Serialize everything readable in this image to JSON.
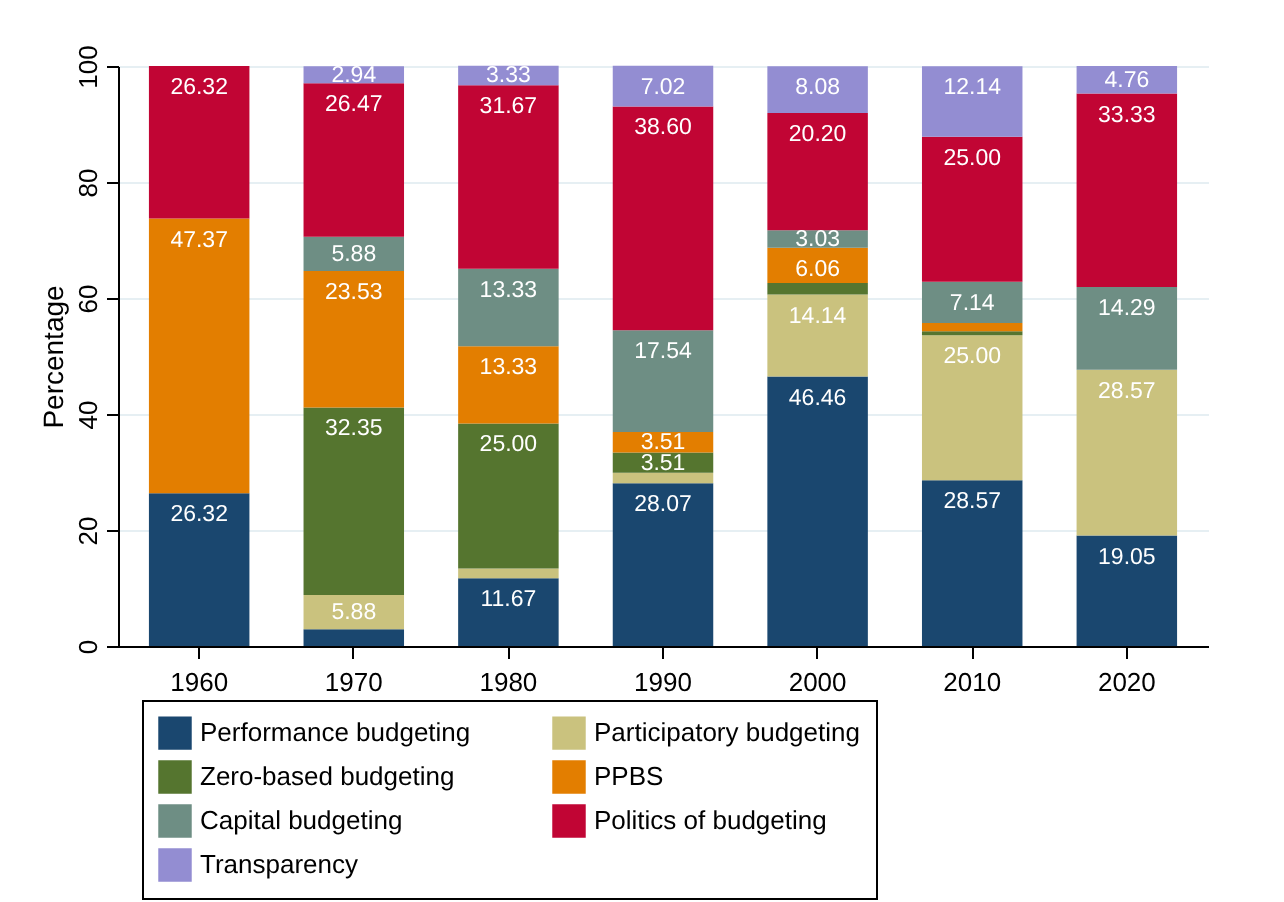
{
  "chart_data": {
    "type": "bar",
    "stacked": true,
    "ylabel": "Percentage",
    "categories": [
      "1960",
      "1970",
      "1980",
      "1990",
      "2000",
      "2010",
      "2020"
    ],
    "ylim": [
      0,
      100
    ],
    "yticks": [
      0,
      20,
      40,
      60,
      80,
      100
    ],
    "grid": "y",
    "legend": "bottom",
    "series": [
      {
        "name": "Performance budgeting",
        "color": "#1a476f",
        "values": [
          26.32,
          2.9,
          11.67,
          28.07,
          46.46,
          28.57,
          19.05
        ],
        "value_labels": [
          "26.32",
          null,
          "11.67",
          "28.07",
          "46.46",
          "28.57",
          "19.05"
        ]
      },
      {
        "name": "Participatory budgeting",
        "color": "#cac27e",
        "values": [
          0,
          5.88,
          1.7,
          1.8,
          14.14,
          25.0,
          28.57
        ],
        "value_labels": [
          null,
          "5.88",
          null,
          null,
          "14.14",
          "25.00",
          "28.57"
        ]
      },
      {
        "name": "Zero-based budgeting",
        "color": "#55752f",
        "values": [
          0,
          32.35,
          25.0,
          3.51,
          2.0,
          0.7,
          0
        ],
        "value_labels": [
          null,
          "32.35",
          "25.00",
          "3.51",
          null,
          null,
          null
        ]
      },
      {
        "name": "PPBS",
        "color": "#e37e00",
        "values": [
          47.37,
          23.53,
          13.33,
          3.51,
          6.06,
          1.4,
          0
        ],
        "value_labels": [
          "47.37",
          "23.53",
          "13.33",
          "3.51",
          "6.06",
          null,
          null
        ]
      },
      {
        "name": "Capital budgeting",
        "color": "#6e8e84",
        "values": [
          0,
          5.88,
          13.33,
          17.54,
          3.03,
          7.14,
          14.29
        ],
        "value_labels": [
          null,
          "5.88",
          "13.33",
          "17.54",
          "3.03",
          "7.14",
          "14.29"
        ]
      },
      {
        "name": "Politics of budgeting",
        "color": "#c10534",
        "values": [
          26.32,
          26.47,
          31.67,
          38.6,
          20.2,
          25.0,
          33.33
        ],
        "value_labels": [
          "26.32",
          "26.47",
          "31.67",
          "38.60",
          "20.20",
          "25.00",
          "33.33"
        ]
      },
      {
        "name": "Transparency",
        "color": "#938dd2",
        "values": [
          0,
          2.94,
          3.33,
          7.02,
          8.08,
          12.14,
          4.76
        ],
        "value_labels": [
          null,
          "2.94",
          "3.33",
          "7.02",
          "8.08",
          "12.14",
          "4.76"
        ]
      }
    ]
  }
}
